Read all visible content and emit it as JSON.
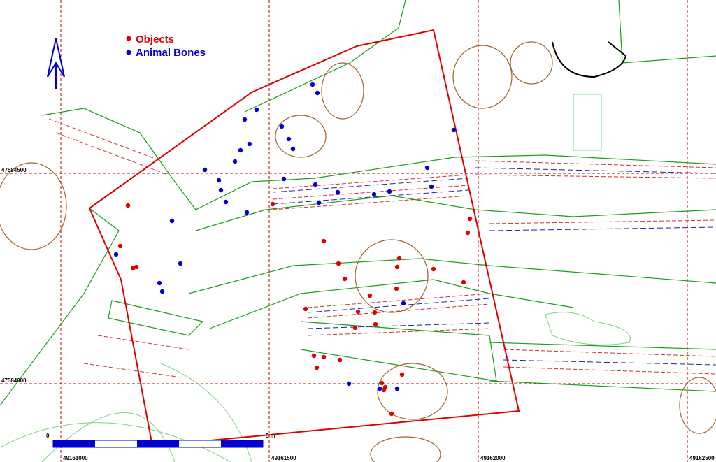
{
  "legend": {
    "items": [
      {
        "label": "Objects",
        "color": "#e00000"
      },
      {
        "label": "Animal Bones",
        "color": "#0000d0"
      }
    ]
  },
  "grid": {
    "y_labels": [
      "47584500",
      "47584000"
    ],
    "x_labels": [
      "49161000",
      "49161500",
      "49162000",
      "49162500"
    ]
  },
  "scale_bar": {
    "start": "0",
    "end": "5 m"
  }
}
